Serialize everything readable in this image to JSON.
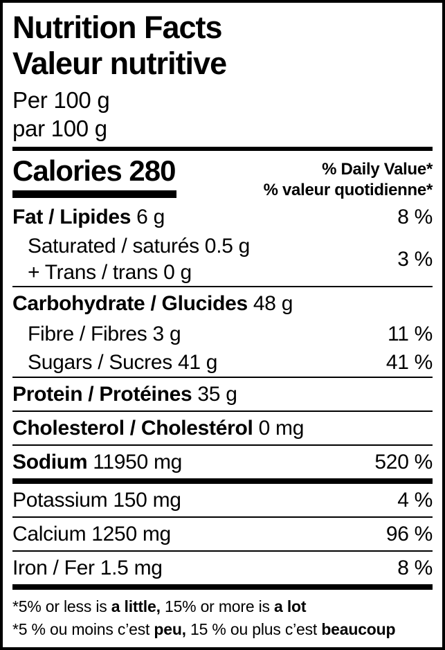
{
  "colors": {
    "text": "#000000",
    "background": "#ffffff",
    "border": "#000000"
  },
  "header": {
    "title_en": "Nutrition Facts",
    "title_fr": "Valeur nutritive",
    "serving_en": "Per 100 g",
    "serving_fr": "par 100 g"
  },
  "calories": {
    "label": "Calories 280",
    "dv_header_en": "% Daily Value*",
    "dv_header_fr": "% valeur quotidienne*"
  },
  "sections": [
    {
      "type": "row",
      "style": "main",
      "bold": "Fat / Lipides",
      "text": "6 g",
      "dv": "8 %"
    },
    {
      "type": "group",
      "lines": [
        "Saturated / saturés 0.5 g",
        "+ Trans / trans 0 g"
      ],
      "dv": "3 %"
    },
    {
      "type": "rule",
      "weight": "thin"
    },
    {
      "type": "row",
      "style": "main",
      "bold": "Carbohydrate / Glucides",
      "text": "48 g",
      "dv": ""
    },
    {
      "type": "row",
      "style": "sub",
      "bold": "",
      "text": "Fibre / Fibres 3 g",
      "dv": "11 %"
    },
    {
      "type": "row",
      "style": "sub",
      "bold": "",
      "text": "Sugars / Sucres 41 g",
      "dv": "41 %"
    },
    {
      "type": "rule",
      "weight": "thin"
    },
    {
      "type": "row",
      "style": "main",
      "bold": "Protein / Protéines",
      "text": "35 g",
      "dv": ""
    },
    {
      "type": "rule",
      "weight": "thin"
    },
    {
      "type": "row",
      "style": "main",
      "bold": "Cholesterol / Cholestérol",
      "text": "0 mg",
      "dv": ""
    },
    {
      "type": "rule",
      "weight": "thin"
    },
    {
      "type": "row",
      "style": "main",
      "bold": "Sodium",
      "text": "11950 mg",
      "dv": "520 %"
    },
    {
      "type": "rule",
      "weight": "heavy"
    },
    {
      "type": "row",
      "style": "plain",
      "bold": "",
      "text": "Potassium 150 mg",
      "dv": "4 %"
    },
    {
      "type": "rule",
      "weight": "thin"
    },
    {
      "type": "row",
      "style": "plain",
      "bold": "",
      "text": "Calcium 1250 mg",
      "dv": "96 %"
    },
    {
      "type": "rule",
      "weight": "thin"
    },
    {
      "type": "row",
      "style": "plain",
      "bold": "",
      "text": "Iron / Fer 1.5 mg",
      "dv": "8 %"
    },
    {
      "type": "rule",
      "weight": "heavy"
    }
  ],
  "footnotes": [
    {
      "segments": [
        {
          "t": "*5% or less is ",
          "b": false
        },
        {
          "t": "a little,",
          "b": true
        },
        {
          "t": " 15% or more is ",
          "b": false
        },
        {
          "t": "a lot",
          "b": true
        }
      ]
    },
    {
      "segments": [
        {
          "t": "*5 % ou moins c’est ",
          "b": false
        },
        {
          "t": "peu,",
          "b": true
        },
        {
          "t": " 15 % ou plus c’est ",
          "b": false
        },
        {
          "t": "beaucoup",
          "b": true
        }
      ]
    }
  ]
}
